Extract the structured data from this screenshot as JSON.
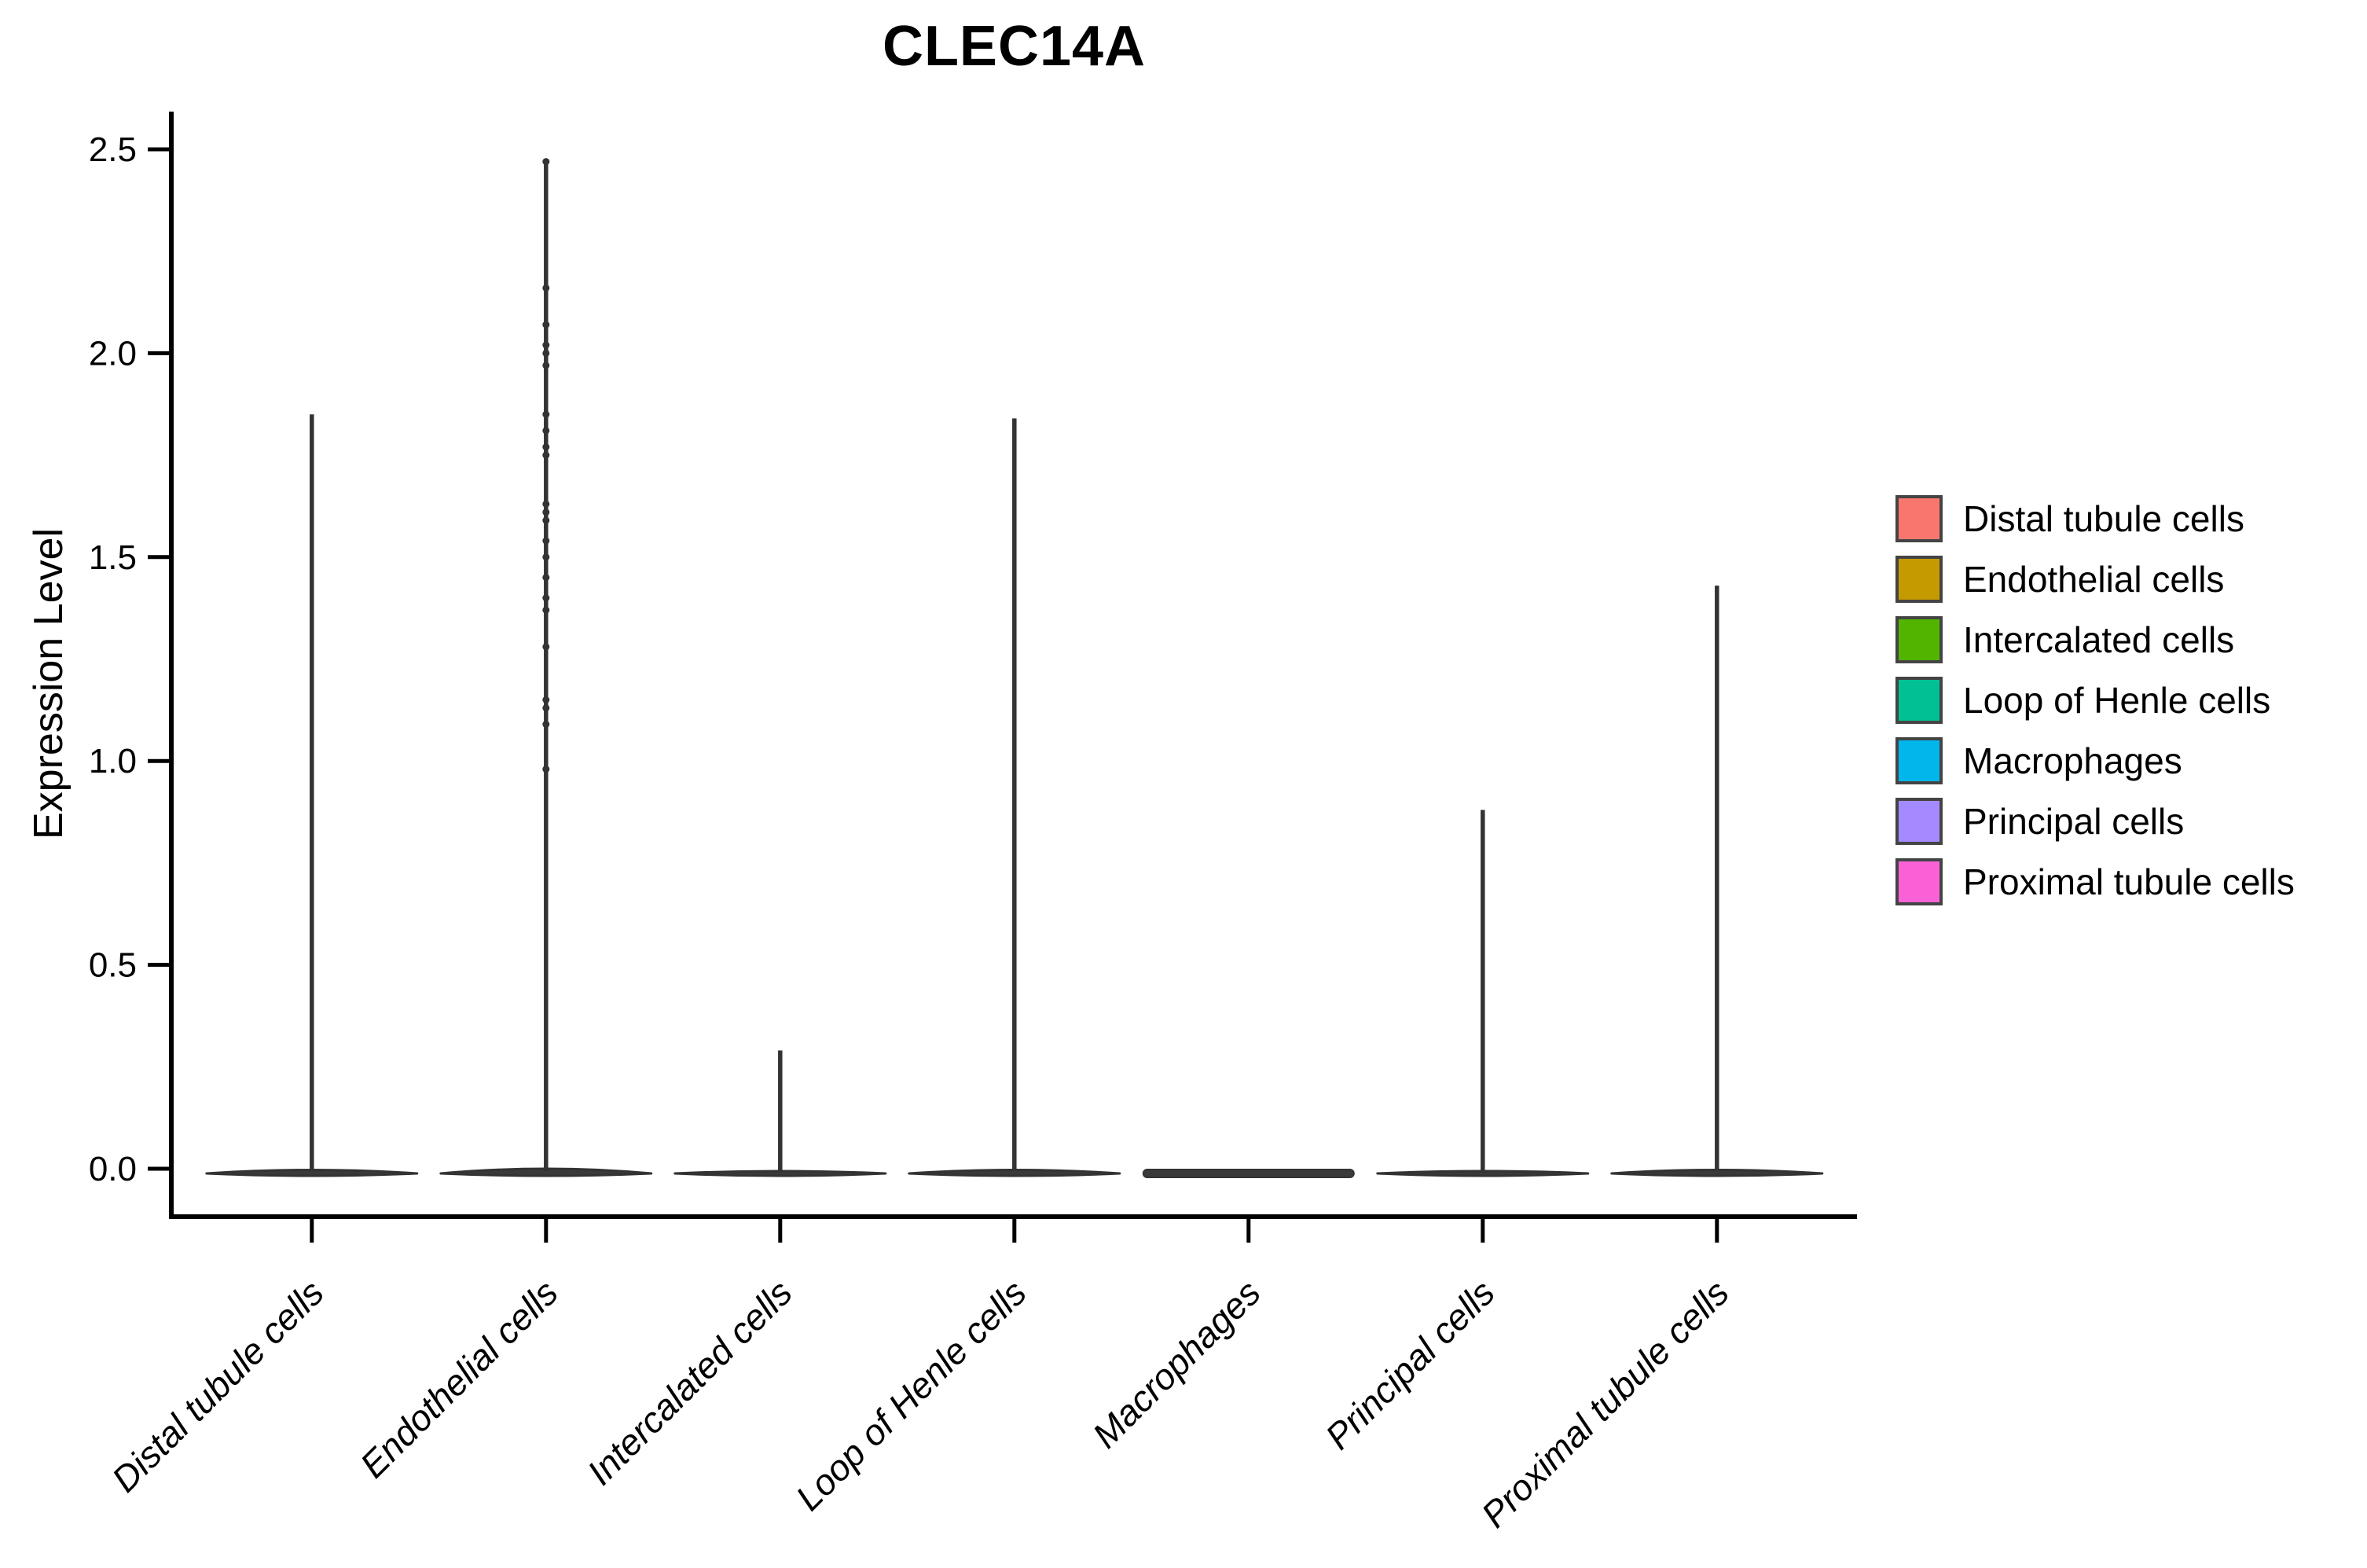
{
  "title": "CLEC14A",
  "y_axis": {
    "label": "Expression Level",
    "tick_labels": [
      "0.0",
      "0.5",
      "1.0",
      "1.5",
      "2.0",
      "2.5"
    ],
    "tick_values": [
      0.0,
      0.5,
      1.0,
      1.5,
      2.0,
      2.5
    ]
  },
  "legend": {
    "items": [
      {
        "label": "Distal tubule cells",
        "color": "#F8766D"
      },
      {
        "label": "Endothelial cells",
        "color": "#C49A00"
      },
      {
        "label": "Intercalated cells",
        "color": "#53B400"
      },
      {
        "label": "Loop of Henle cells",
        "color": "#00C094"
      },
      {
        "label": "Macrophages",
        "color": "#00B6EB"
      },
      {
        "label": "Principal cells",
        "color": "#A58AFF"
      },
      {
        "label": "Proximal tubule cells",
        "color": "#FB61D7"
      }
    ]
  },
  "chart_data": {
    "type": "violin",
    "title": "CLEC14A",
    "xlabel": "",
    "ylabel": "Expression Level",
    "ylim": [
      -0.12,
      2.59
    ],
    "grid": false,
    "legend_position": "right",
    "categories": [
      "Distal tubule cells",
      "Endothelial cells",
      "Intercalated cells",
      "Loop of Henle cells",
      "Macrophages",
      "Principal cells",
      "Proximal tubule cells"
    ],
    "violin_outline_color": "#333333",
    "series": [
      {
        "name": "Distal tubule cells",
        "color": "#F8766D",
        "bulk_at": 0.0,
        "max_expression": 1.85,
        "profile": "zero-inflated-spike",
        "points": []
      },
      {
        "name": "Endothelial cells",
        "color": "#C49A00",
        "bulk_at": 0.0,
        "max_expression": 2.47,
        "profile": "zero-inflated-spike",
        "points": [
          2.47,
          2.16,
          2.07,
          2.02,
          2.0,
          1.97,
          1.85,
          1.81,
          1.77,
          1.75,
          1.63,
          1.61,
          1.59,
          1.54,
          1.5,
          1.45,
          1.4,
          1.37,
          1.28,
          1.15,
          1.13,
          1.09,
          0.98
        ]
      },
      {
        "name": "Intercalated cells",
        "color": "#53B400",
        "bulk_at": 0.0,
        "max_expression": 0.29,
        "profile": "zero-inflated-spike",
        "points": []
      },
      {
        "name": "Loop of Henle cells",
        "color": "#00C094",
        "bulk_at": 0.0,
        "max_expression": 1.84,
        "profile": "zero-inflated-spike",
        "points": []
      },
      {
        "name": "Macrophages",
        "color": "#00B6EB",
        "bulk_at": 0.0,
        "max_expression": 0.0,
        "profile": "flat-zero",
        "points": []
      },
      {
        "name": "Principal cells",
        "color": "#A58AFF",
        "bulk_at": 0.0,
        "max_expression": 0.88,
        "profile": "zero-inflated-spike",
        "points": []
      },
      {
        "name": "Proximal tubule cells",
        "color": "#FB61D7",
        "bulk_at": 0.0,
        "max_expression": 1.43,
        "profile": "zero-inflated-spike",
        "points": []
      }
    ]
  }
}
